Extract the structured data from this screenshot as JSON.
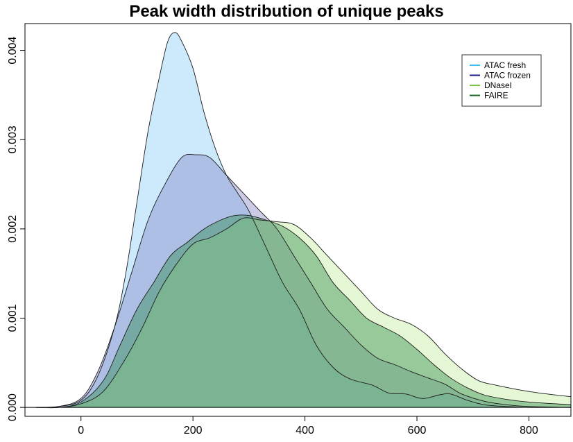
{
  "chart_data": {
    "type": "area",
    "title": "Peak width distribution of unique peaks",
    "xlabel": "",
    "ylabel": "",
    "xlim": [
      -100,
      875
    ],
    "ylim": [
      -0.0001,
      0.0043
    ],
    "x_ticks": [
      0,
      200,
      400,
      600,
      800
    ],
    "y_ticks": [
      0.0,
      0.001,
      0.002,
      0.003,
      0.004
    ],
    "x_tick_labels": [
      "0",
      "200",
      "400",
      "600",
      "800"
    ],
    "y_tick_labels": [
      "0.000",
      "0.001",
      "0.002",
      "0.003",
      "0.004"
    ],
    "legend_position": "top-right",
    "grid": false,
    "series": [
      {
        "name": "ATAC fresh",
        "line_color": "#3fbfef",
        "fill_color": "#87cefa",
        "points": [
          [
            -80,
            0
          ],
          [
            -40,
            1e-05
          ],
          [
            0,
            8e-05
          ],
          [
            30,
            0.00035
          ],
          [
            60,
            0.0009
          ],
          [
            80,
            0.0015
          ],
          [
            100,
            0.0023
          ],
          [
            120,
            0.0031
          ],
          [
            140,
            0.0037
          ],
          [
            155,
            0.0041
          ],
          [
            168,
            0.0042
          ],
          [
            180,
            0.0041
          ],
          [
            200,
            0.0038
          ],
          [
            220,
            0.0033
          ],
          [
            240,
            0.0029
          ],
          [
            260,
            0.0026
          ],
          [
            280,
            0.0024
          ],
          [
            300,
            0.0022
          ],
          [
            330,
            0.0018
          ],
          [
            360,
            0.0014
          ],
          [
            390,
            0.0011
          ],
          [
            420,
            0.0007
          ],
          [
            450,
            0.00045
          ],
          [
            480,
            0.00032
          ],
          [
            520,
            0.00025
          ],
          [
            550,
            0.00016
          ],
          [
            580,
            0.00015
          ],
          [
            610,
            0.0001
          ],
          [
            640,
            0.00014
          ],
          [
            660,
            0.00015
          ],
          [
            690,
            8e-05
          ],
          [
            720,
            3e-05
          ],
          [
            760,
            1e-05
          ],
          [
            800,
            0
          ],
          [
            875,
            0
          ]
        ]
      },
      {
        "name": "ATAC frozen",
        "line_color": "#1c1c8c",
        "fill_color": "#8484c4",
        "points": [
          [
            -80,
            0
          ],
          [
            -40,
            1e-05
          ],
          [
            0,
            0.0001
          ],
          [
            30,
            0.0004
          ],
          [
            60,
            0.0009
          ],
          [
            90,
            0.0015
          ],
          [
            120,
            0.0021
          ],
          [
            150,
            0.0025
          ],
          [
            180,
            0.0028
          ],
          [
            205,
            0.00283
          ],
          [
            230,
            0.0028
          ],
          [
            260,
            0.0026
          ],
          [
            290,
            0.0024
          ],
          [
            320,
            0.0022
          ],
          [
            350,
            0.002
          ],
          [
            380,
            0.0017
          ],
          [
            410,
            0.0014
          ],
          [
            440,
            0.0011
          ],
          [
            470,
            0.0009
          ],
          [
            500,
            0.0007
          ],
          [
            530,
            0.00055
          ],
          [
            560,
            0.00048
          ],
          [
            590,
            0.0004
          ],
          [
            620,
            0.00033
          ],
          [
            650,
            0.00026
          ],
          [
            680,
            0.00015
          ],
          [
            720,
            7e-05
          ],
          [
            760,
            3e-05
          ],
          [
            800,
            1e-05
          ],
          [
            875,
            0
          ]
        ]
      },
      {
        "name": "DNaseI",
        "line_color": "#76c442",
        "fill_color": "#c2ec9c",
        "points": [
          [
            -80,
            0
          ],
          [
            -40,
            0
          ],
          [
            0,
            4e-05
          ],
          [
            40,
            0.00018
          ],
          [
            80,
            0.00055
          ],
          [
            110,
            0.0009
          ],
          [
            140,
            0.0013
          ],
          [
            170,
            0.0016
          ],
          [
            200,
            0.00183
          ],
          [
            230,
            0.0019
          ],
          [
            260,
            0.002
          ],
          [
            290,
            0.00212
          ],
          [
            320,
            0.0021
          ],
          [
            350,
            0.00208
          ],
          [
            380,
            0.00205
          ],
          [
            410,
            0.0019
          ],
          [
            440,
            0.0017
          ],
          [
            470,
            0.0015
          ],
          [
            500,
            0.0013
          ],
          [
            530,
            0.0011
          ],
          [
            560,
            0.001
          ],
          [
            590,
            0.00093
          ],
          [
            620,
            0.0008
          ],
          [
            650,
            0.0006
          ],
          [
            680,
            0.00043
          ],
          [
            710,
            0.0003
          ],
          [
            740,
            0.00025
          ],
          [
            780,
            0.0002
          ],
          [
            820,
            0.00016
          ],
          [
            875,
            0.00012
          ]
        ]
      },
      {
        "name": "FAIRE",
        "line_color": "#1f6b2b",
        "fill_color": "#2b8a4a",
        "points": [
          [
            -80,
            0
          ],
          [
            -40,
            0
          ],
          [
            0,
            6e-05
          ],
          [
            40,
            0.0003
          ],
          [
            70,
            0.0007
          ],
          [
            100,
            0.0011
          ],
          [
            130,
            0.0014
          ],
          [
            160,
            0.0017
          ],
          [
            190,
            0.00185
          ],
          [
            220,
            0.002
          ],
          [
            250,
            0.0021
          ],
          [
            275,
            0.00215
          ],
          [
            300,
            0.00215
          ],
          [
            330,
            0.0021
          ],
          [
            360,
            0.00203
          ],
          [
            390,
            0.0019
          ],
          [
            420,
            0.0017
          ],
          [
            450,
            0.0014
          ],
          [
            480,
            0.0012
          ],
          [
            510,
            0.001
          ],
          [
            540,
            0.0009
          ],
          [
            570,
            0.0008
          ],
          [
            600,
            0.00065
          ],
          [
            630,
            0.00048
          ],
          [
            660,
            0.00033
          ],
          [
            690,
            0.00022
          ],
          [
            720,
            0.00014
          ],
          [
            760,
            9e-05
          ],
          [
            800,
            6e-05
          ],
          [
            875,
            3e-05
          ]
        ]
      }
    ]
  }
}
